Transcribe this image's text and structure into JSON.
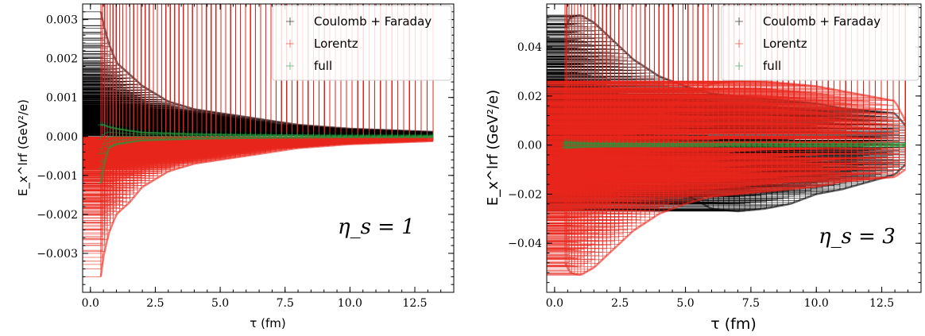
{
  "chart_data": [
    {
      "type": "scatter",
      "annotation": "η_s = 1",
      "xlabel": "τ (fm)",
      "ylabel": "E_x^lrf (GeV²/e)",
      "xlim": [
        -0.3,
        14.0
      ],
      "ylim": [
        -0.004,
        0.0034
      ],
      "xticks": [
        0.0,
        2.5,
        5.0,
        7.5,
        10.0,
        12.5
      ],
      "xtick_labels": [
        "0.0",
        "2.5",
        "5.0",
        "7.5",
        "10.0",
        "12.5"
      ],
      "yticks": [
        0.003,
        0.002,
        0.001,
        0.0,
        -0.001,
        -0.002,
        -0.003
      ],
      "ytick_labels": [
        "0.003",
        "0.002",
        "0.001",
        "0.000",
        "−0.001",
        "−0.002",
        "−0.003"
      ],
      "legend": "top-right",
      "series": [
        {
          "name": "Coulomb + Faraday",
          "color": "#000000",
          "x": [
            0.4,
            0.5,
            0.7,
            1.0,
            1.5,
            2.0,
            3.0,
            4.0,
            5.0,
            6.0,
            8.0,
            10.0,
            12.0,
            13.2
          ],
          "upper": [
            0.0032,
            0.0029,
            0.0024,
            0.0019,
            0.0016,
            0.0013,
            0.0009,
            0.0007,
            0.0006,
            0.0005,
            0.0003,
            0.0002,
            0.00015,
            0.00012
          ],
          "lower": [
            0.0003,
            0.0004,
            0.0004,
            0.0003,
            0.0002,
            0.0002,
            0.00015,
            0.0001,
            0.0001,
            5e-05,
            3e-05,
            2e-05,
            2e-05,
            2e-05
          ]
        },
        {
          "name": "Lorentz",
          "color": "#e8261c",
          "x": [
            0.4,
            0.5,
            0.7,
            1.0,
            1.5,
            2.0,
            3.0,
            4.0,
            5.0,
            6.0,
            8.0,
            10.0,
            12.0,
            13.2
          ],
          "upper": [
            -0.0004,
            -0.0004,
            -0.0004,
            -0.0003,
            -0.0002,
            -0.0002,
            -0.00015,
            -0.0001,
            -0.0001,
            -5e-05,
            -3e-05,
            -2e-05,
            -2e-05,
            -2e-05
          ],
          "lower": [
            -0.0036,
            -0.0031,
            -0.0025,
            -0.002,
            -0.0017,
            -0.0013,
            -0.0009,
            -0.0007,
            -0.0006,
            -0.0005,
            -0.0003,
            -0.0002,
            -0.00015,
            -0.00012
          ]
        },
        {
          "name": "full",
          "color": "#1f9a3c",
          "x": [
            0.4,
            0.5,
            0.7,
            1.0,
            1.5,
            2.0,
            3.0,
            4.0,
            5.0,
            6.0,
            8.0,
            10.0,
            12.0,
            13.2
          ],
          "upper": [
            0.0003,
            0.0003,
            0.00025,
            0.0002,
            0.00015,
            0.0001,
            8e-05,
            6e-05,
            5e-05,
            4e-05,
            3e-05,
            2e-05,
            2e-05,
            2e-05
          ],
          "lower": [
            -0.0012,
            -0.0008,
            -0.0003,
            -0.0002,
            -0.00015,
            -0.0001,
            -8e-05,
            -6e-05,
            -5e-05,
            -4e-05,
            -3e-05,
            -2e-05,
            -2e-05,
            -2e-05
          ]
        }
      ]
    },
    {
      "type": "scatter",
      "annotation": "η_s = 3",
      "xlabel": "τ (fm)",
      "ylabel": "E_x^lrf (GeV²/e)",
      "xlim": [
        -0.3,
        14.0
      ],
      "ylim": [
        -0.06,
        0.0575
      ],
      "xticks": [
        0.0,
        2.5,
        5.0,
        7.5,
        10.0,
        12.5
      ],
      "xtick_labels": [
        "0.0",
        "2.5",
        "5.0",
        "7.5",
        "10.0",
        "12.5"
      ],
      "yticks": [
        0.04,
        0.02,
        0.0,
        -0.02,
        -0.04
      ],
      "ytick_labels": [
        "0.04",
        "0.02",
        "0.00",
        "−0.02",
        "−0.04"
      ],
      "legend": "top-right",
      "series": [
        {
          "name": "Coulomb + Faraday",
          "color": "#000000",
          "x": [
            0.4,
            0.6,
            1.0,
            1.5,
            2.0,
            3.0,
            4.0,
            5.0,
            6.0,
            7.0,
            8.0,
            9.0,
            10.0,
            11.0,
            12.0,
            13.0,
            13.4
          ],
          "upper": [
            0.048,
            0.052,
            0.053,
            0.05,
            0.045,
            0.035,
            0.028,
            0.024,
            0.021,
            0.02,
            0.019,
            0.018,
            0.017,
            0.015,
            0.014,
            0.013,
            0.008
          ],
          "lower": [
            0.0,
            0.0,
            0.0,
            0.0,
            -0.002,
            -0.006,
            -0.012,
            -0.02,
            -0.026,
            -0.027,
            -0.026,
            -0.024,
            -0.02,
            -0.018,
            -0.015,
            -0.012,
            -0.008
          ]
        },
        {
          "name": "Lorentz",
          "color": "#e8261c",
          "x": [
            0.4,
            0.6,
            1.0,
            1.5,
            2.0,
            3.0,
            4.0,
            5.0,
            6.0,
            7.0,
            8.0,
            9.0,
            10.0,
            11.0,
            12.0,
            13.0,
            13.4
          ],
          "upper": [
            0.0,
            0.0,
            0.0,
            0.0,
            0.002,
            0.006,
            0.012,
            0.02,
            0.025,
            0.026,
            0.026,
            0.025,
            0.024,
            0.022,
            0.02,
            0.018,
            0.01
          ],
          "lower": [
            -0.048,
            -0.052,
            -0.053,
            -0.05,
            -0.045,
            -0.035,
            -0.028,
            -0.024,
            -0.021,
            -0.02,
            -0.019,
            -0.018,
            -0.017,
            -0.015,
            -0.014,
            -0.013,
            -0.01
          ]
        },
        {
          "name": "full",
          "color": "#1f9a3c",
          "x": [
            0.4,
            1.0,
            2.0,
            4.0,
            6.0,
            8.0,
            10.0,
            12.0,
            13.4
          ],
          "upper": [
            0.0012,
            0.0008,
            0.0006,
            0.0005,
            0.0005,
            0.0005,
            0.0005,
            0.0005,
            0.0005
          ],
          "lower": [
            -0.0012,
            -0.0008,
            -0.0006,
            -0.0005,
            -0.0005,
            -0.0005,
            -0.0005,
            -0.0005,
            -0.0005
          ]
        }
      ]
    }
  ]
}
